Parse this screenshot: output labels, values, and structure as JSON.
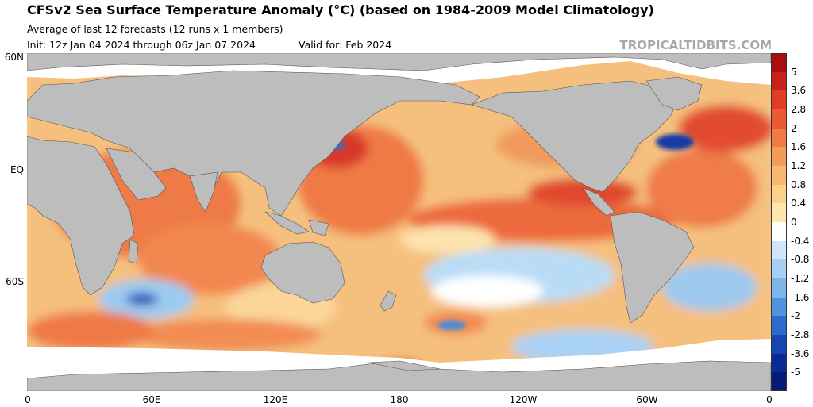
{
  "title": "CFSv2 Sea Surface Temperature Anomaly (°C) (based on 1984-2009 Model Climatology)",
  "subtitle": "Average of last 12 forecasts (12 runs x 1 members)",
  "init": "Init: 12z Jan 04 2024 through 06z Jan 07 2024",
  "valid": "Valid for: Feb 2024",
  "credit": "TROPICALTIDBITS.COM",
  "lat_labels": [
    "60N",
    "EQ",
    "60S"
  ],
  "lon_labels": [
    "0",
    "60E",
    "120E",
    "180",
    "120W",
    "60W",
    "0"
  ],
  "colorbar": {
    "labels": [
      "5",
      "3.6",
      "2.8",
      "2",
      "1.6",
      "1.2",
      "0.8",
      "0.4",
      "0",
      "-0.4",
      "-0.8",
      "-1.2",
      "-1.6",
      "-2",
      "-2.8",
      "-3.6",
      "-5"
    ],
    "colors": [
      "#a81010",
      "#c8201a",
      "#e03c26",
      "#ec5a34",
      "#f27a44",
      "#f59a58",
      "#f8b872",
      "#fbd28c",
      "#fde7b0",
      "#ffffff",
      "#cfe6fa",
      "#a7d0f4",
      "#7ab6ea",
      "#4f94dc",
      "#2a6ccb",
      "#1446b4",
      "#0a2a96",
      "#061a7a"
    ]
  },
  "colors": {
    "land": "#bdbdbd",
    "ice": "#ffffff",
    "ocean_base": "#f6c98a"
  }
}
